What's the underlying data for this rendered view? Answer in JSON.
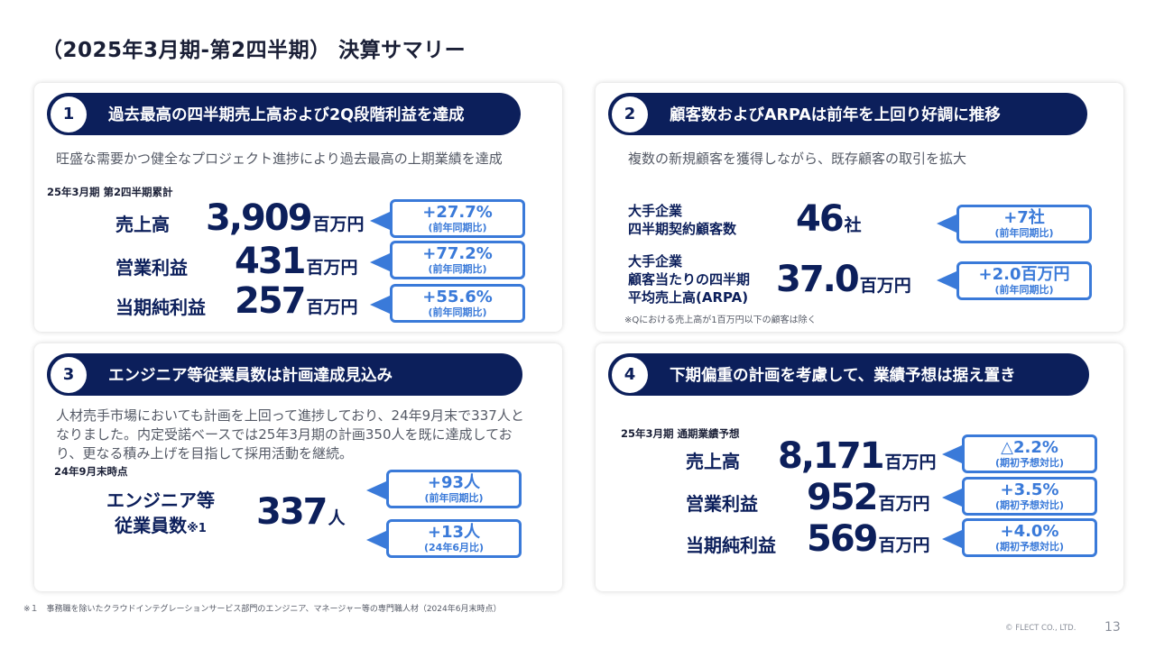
{
  "page_title": "（2025年3月期-第2四半期） 決算サマリー",
  "card1": {
    "num": "1",
    "title": "過去最高の四半期売上高および2Q段階利益を達成",
    "subtitle": "旺盛な需要かつ健全なプロジェクト進捗により過去最高の上期業績を達成",
    "period": "25年3月期 第2四半期累計",
    "metrics": [
      {
        "label": "売上高",
        "value": "3,909",
        "unit": "百万円",
        "change": "+27.7%",
        "note": "(前年同期比)"
      },
      {
        "label": "営業利益",
        "value": "431",
        "unit": "百万円",
        "change": "+77.2%",
        "note": "(前年同期比)"
      },
      {
        "label": "当期純利益",
        "value": "257",
        "unit": "百万円",
        "change": "+55.6%",
        "note": "(前年同期比)"
      }
    ]
  },
  "card2": {
    "num": "2",
    "title": "顧客数およびARPAは前年を上回り好調に推移",
    "subtitle": "複数の新規顧客を獲得しながら、既存顧客の取引を拡大",
    "metrics": [
      {
        "label_lines": [
          "大手企業",
          "四半期契約顧客数"
        ],
        "value": "46",
        "unit": "社",
        "change": "+7社",
        "note": "(前年同期比)"
      },
      {
        "label_lines": [
          "大手企業",
          "顧客当たりの四半期",
          "平均売上高(ARPA)"
        ],
        "value": "37.0",
        "unit": "百万円",
        "change": "+2.0百万円",
        "note": "(前年同期比)"
      }
    ],
    "footnote": "※Qにおける売上高が1百万円以下の顧客は除く"
  },
  "card3": {
    "num": "3",
    "title": "エンジニア等従業員数は計画達成見込み",
    "paragraph": "人材売手市場においても計画を上回って進捗しており、24年9月末で337人となりました。内定受諾ベースでは25年3月期の計画350人を既に達成しており、更なる積み上げを目指して採用活動を継続。",
    "period": "24年9月末時点",
    "label_lines": [
      "エンジニア等",
      "従業員数"
    ],
    "label_mark": "※1",
    "value": "337",
    "unit": "人",
    "changes": [
      {
        "change": "+93人",
        "note": "(前年同期比)"
      },
      {
        "change": "+13人",
        "note": "(24年6月比)"
      }
    ]
  },
  "card4": {
    "num": "4",
    "title": "下期偏重の計画を考慮して、業績予想は据え置き",
    "period": "25年3月期 通期業績予想",
    "metrics": [
      {
        "label": "売上高",
        "value": "8,171",
        "unit": "百万円",
        "change": "△2.2%",
        "note": "(期初予想対比)"
      },
      {
        "label": "営業利益",
        "value": "952",
        "unit": "百万円",
        "change": "+3.5%",
        "note": "(期初予想対比)"
      },
      {
        "label": "当期純利益",
        "value": "569",
        "unit": "百万円",
        "change": "+4.0%",
        "note": "(期初予想対比)"
      }
    ]
  },
  "footnote": "※１　事務職を除いたクラウドインテグレーションサービス部門のエンジニア、マネージャー等の専門職人材（2024年6月末時点）",
  "copyright": "© FLECT CO., LTD.",
  "page_number": "13"
}
